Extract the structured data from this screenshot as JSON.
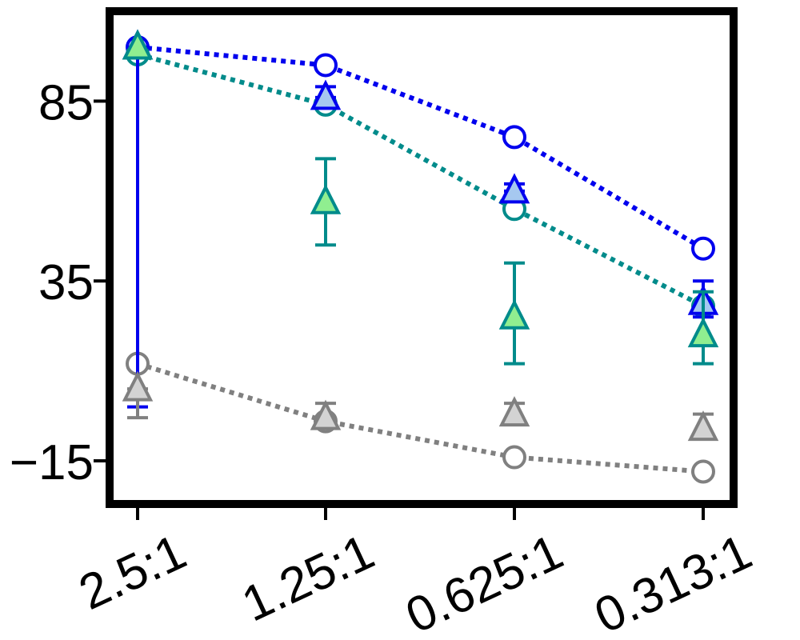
{
  "chart_data": {
    "type": "line",
    "title": "",
    "xlabel": "",
    "ylabel": "",
    "categories": [
      "2.5:1",
      "1.25:1",
      "0.625:1",
      "0.313:1"
    ],
    "yticks": [
      85,
      35,
      -15
    ],
    "ytick_labels": [
      "85",
      "35",
      "−15"
    ],
    "ylim": [
      -27,
      110
    ],
    "grid": false,
    "legend": "none",
    "series": [
      {
        "marker": "circle",
        "line": "dotted",
        "color": "#0000ee",
        "fill": "#ffffff",
        "values": [
          100,
          95,
          75,
          44
        ]
      },
      {
        "marker": "circle",
        "line": "dotted",
        "color": "#008b8b",
        "fill": "#ffffff",
        "values": [
          98,
          84,
          55,
          28
        ]
      },
      {
        "marker": "circle",
        "line": "dotted",
        "color": "#808080",
        "fill": "#ffffff",
        "values": [
          12,
          -4,
          -14,
          -18
        ]
      },
      {
        "marker": "triangle",
        "line": "none",
        "color": "#0000ee",
        "fill": "#a6c8f0",
        "values": [
          100,
          86,
          60,
          29
        ],
        "err_low": [
          0,
          86,
          60,
          25
        ],
        "err_high": [
          100,
          89,
          62,
          35
        ]
      },
      {
        "marker": "triangle",
        "line": "none",
        "color": "#008b8b",
        "fill": "#90ee90",
        "values": [
          100,
          57,
          25,
          20
        ],
        "err_low": [
          100,
          45,
          12,
          12
        ],
        "err_high": [
          100,
          69,
          40,
          32
        ]
      },
      {
        "marker": "triangle",
        "line": "none",
        "color": "#808080",
        "fill": "#d3d3d3",
        "values": [
          5,
          -3,
          -2,
          -6
        ],
        "err_low": [
          -3,
          -5,
          -4,
          -8
        ],
        "err_high": [
          5,
          1,
          1,
          -2
        ]
      }
    ]
  }
}
